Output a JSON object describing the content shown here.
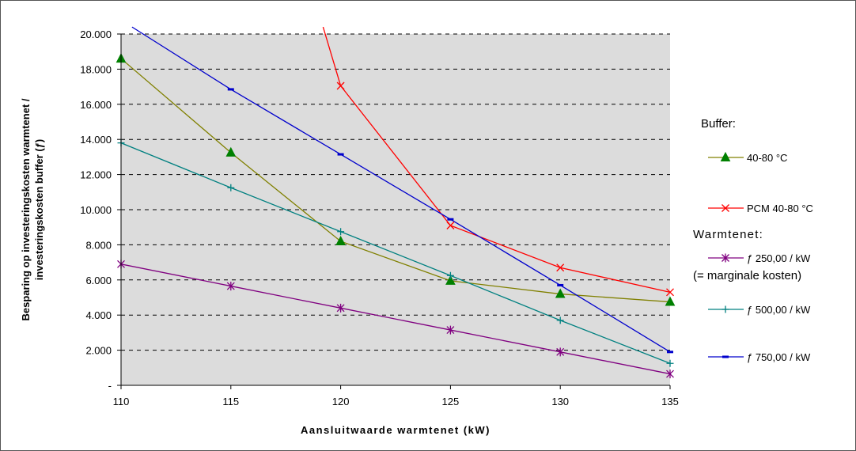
{
  "chart_data": {
    "type": "line",
    "title": "",
    "xlabel": "Aansluitwaarde warmtenet (kW)",
    "ylabel_line1": "Besparing op investeringskosten warmtenet /",
    "ylabel_line2": "investeringskosten buffer (ƒ)",
    "x": [
      110,
      115,
      120,
      125,
      130,
      135
    ],
    "x_tick_labels": [
      "110",
      "115",
      "120",
      "125",
      "130",
      "135"
    ],
    "xlim": [
      110,
      135
    ],
    "ylim": [
      0,
      20000
    ],
    "y_ticks": [
      0,
      2000,
      4000,
      6000,
      8000,
      10000,
      12000,
      14000,
      16000,
      18000,
      20000
    ],
    "y_tick_labels": [
      "-",
      "2.000",
      "4.000",
      "6.000",
      "8.000",
      "10.000",
      "12.000",
      "14.000",
      "16.000",
      "18.000",
      "20.000"
    ],
    "grid": true,
    "legend_position": "right",
    "legend_group_buffer": "Buffer:",
    "legend_group_net": "Warmtenet:",
    "legend_note": "(= marginale kosten)",
    "series": [
      {
        "name": "40-80 °C",
        "color": "#808000",
        "marker": "triangle",
        "x": [
          110,
          115,
          120,
          125,
          130,
          135
        ],
        "values": [
          18600,
          13250,
          8200,
          5950,
          5200,
          4750
        ]
      },
      {
        "name": "PCM 40-80 °C",
        "color": "#ff0000",
        "marker": "x",
        "x": [
          119.2,
          120,
          125,
          130,
          135
        ],
        "values": [
          20400,
          17050,
          9100,
          6700,
          5300
        ]
      },
      {
        "name": "ƒ 250,00 / kW",
        "color": "#800080",
        "marker": "star",
        "x": [
          110,
          115,
          120,
          125,
          130,
          135
        ],
        "values": [
          6900,
          5650,
          4400,
          3150,
          1900,
          650
        ]
      },
      {
        "name": "ƒ 500,00 / kW",
        "color": "#008080",
        "marker": "plus",
        "x": [
          110,
          115,
          120,
          125,
          130,
          135
        ],
        "values": [
          13800,
          11250,
          8750,
          6250,
          3700,
          1250
        ]
      },
      {
        "name": "ƒ 750,00 / kW",
        "color": "#0000cc",
        "marker": "dash",
        "x": [
          110.5,
          115,
          120,
          125,
          130,
          135
        ],
        "values": [
          20400,
          16850,
          13150,
          9450,
          5700,
          1900
        ]
      }
    ]
  }
}
